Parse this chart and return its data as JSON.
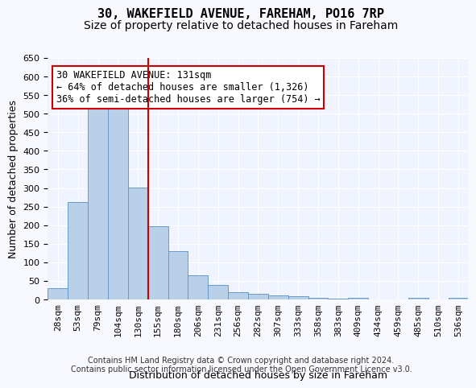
{
  "title1": "30, WAKEFIELD AVENUE, FAREHAM, PO16 7RP",
  "title2": "Size of property relative to detached houses in Fareham",
  "xlabel": "Distribution of detached houses by size in Fareham",
  "ylabel": "Number of detached properties",
  "categories": [
    "28sqm",
    "53sqm",
    "79sqm",
    "104sqm",
    "130sqm",
    "155sqm",
    "180sqm",
    "206sqm",
    "231sqm",
    "256sqm",
    "282sqm",
    "307sqm",
    "333sqm",
    "358sqm",
    "383sqm",
    "409sqm",
    "434sqm",
    "459sqm",
    "485sqm",
    "510sqm",
    "536sqm"
  ],
  "values": [
    30,
    262,
    515,
    515,
    302,
    197,
    130,
    65,
    38,
    20,
    15,
    10,
    8,
    5,
    3,
    5,
    1,
    1,
    5,
    1,
    5
  ],
  "bar_color": "#b8d0e8",
  "bar_edge_color": "#6699cc",
  "red_line_x": 4,
  "annotation_text": "30 WAKEFIELD AVENUE: 131sqm\n← 64% of detached houses are smaller (1,326)\n36% of semi-detached houses are larger (754) →",
  "annotation_box_color": "#ffffff",
  "annotation_box_edge_color": "#cc0000",
  "ylim": [
    0,
    650
  ],
  "yticks": [
    0,
    50,
    100,
    150,
    200,
    250,
    300,
    350,
    400,
    450,
    500,
    550,
    600,
    650
  ],
  "footer_text": "Contains HM Land Registry data © Crown copyright and database right 2024.\nContains public sector information licensed under the Open Government Licence v3.0.",
  "background_color": "#f0f4ff",
  "grid_color": "#ffffff",
  "title1_fontsize": 11,
  "title2_fontsize": 10,
  "axis_fontsize": 9,
  "tick_fontsize": 8,
  "annotation_fontsize": 8.5,
  "footer_fontsize": 7
}
